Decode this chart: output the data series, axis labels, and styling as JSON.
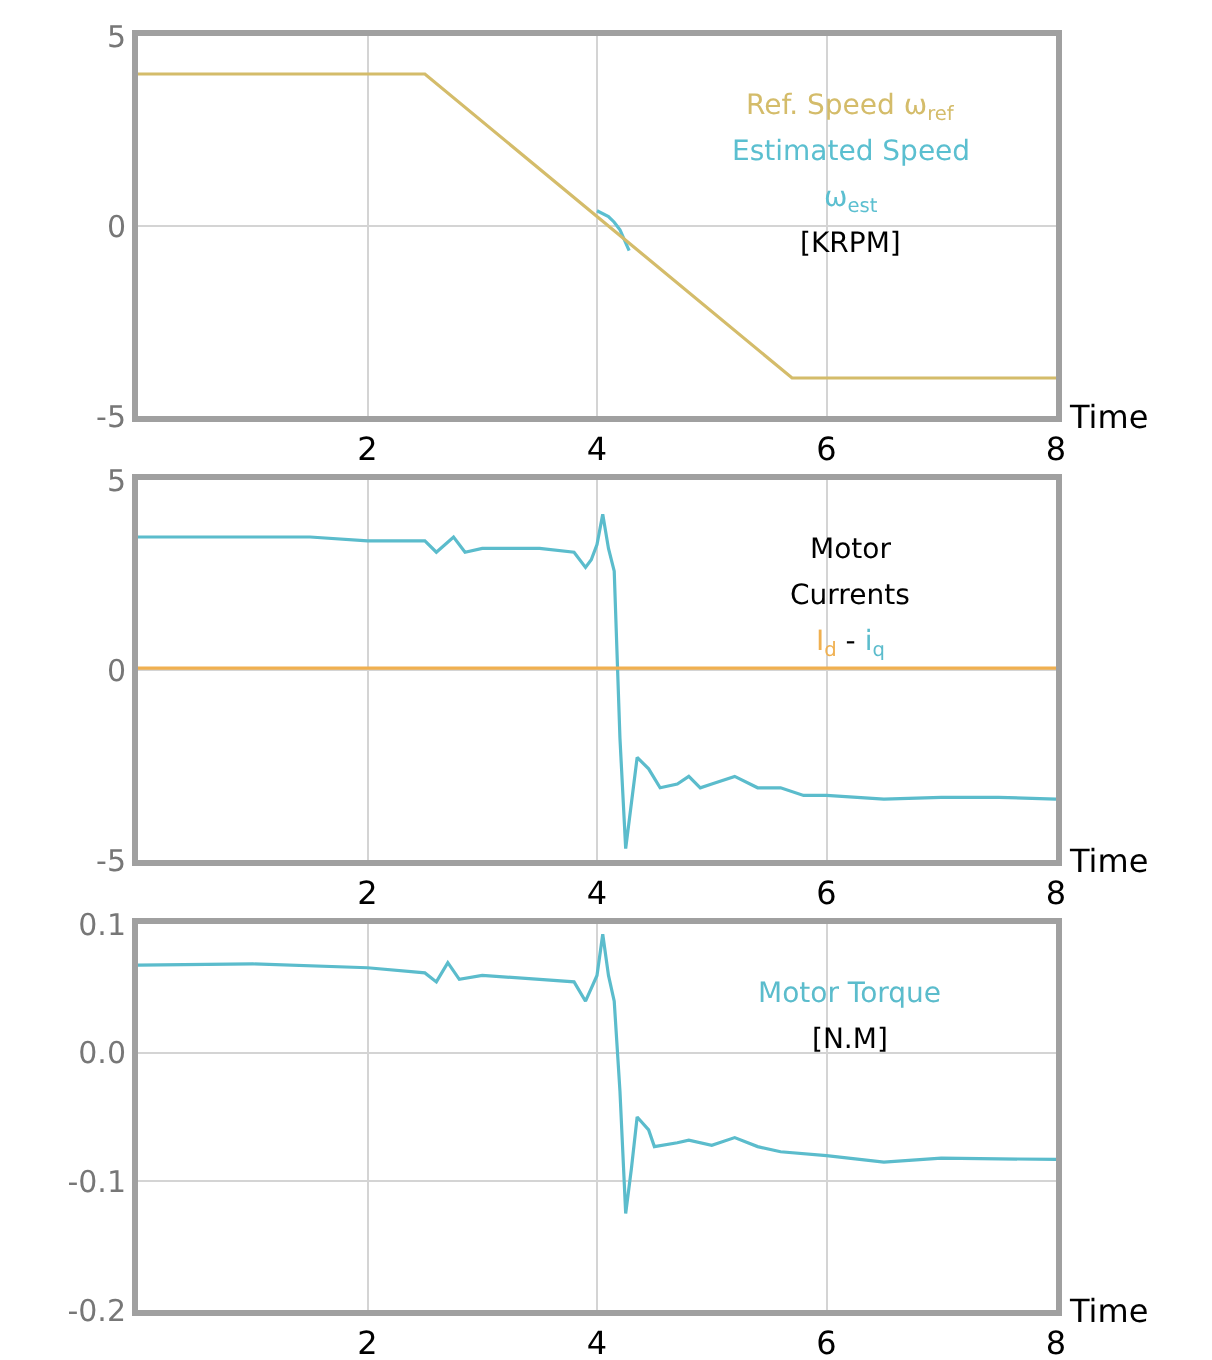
{
  "chart_data": [
    {
      "type": "line",
      "ylabel": "[KRPM]",
      "xlabel": "Time",
      "xlim": [
        0,
        8
      ],
      "xticks": [
        2,
        4,
        6,
        8
      ],
      "ylim": [
        -5,
        5
      ],
      "yticks": [
        -5,
        0,
        5
      ],
      "grid": true,
      "legend": "top right",
      "marker": "none",
      "line_style": "solid",
      "series": [
        {
          "name": "Ref. Speed ω$_{ref}$",
          "color": "#d4bc6a",
          "x": [
            0,
            2.5,
            5.7,
            8
          ],
          "values": [
            4,
            4,
            -4,
            -4
          ]
        },
        {
          "name": "Estimated Speed ω$_{est}$",
          "color": "#5bbfd0",
          "x": [
            4.0,
            4.1,
            4.15,
            4.2,
            4.28
          ],
          "values": [
            0.4,
            0.25,
            0.1,
            -0.1,
            -0.65
          ]
        }
      ]
    },
    {
      "type": "line",
      "title": "Motor Currents",
      "annotations": [
        "-"
      ],
      "xlabel": "Time",
      "xlim": [
        0,
        8
      ],
      "xticks": [
        2,
        4,
        6,
        8
      ],
      "ylim": [
        -5,
        5
      ],
      "yticks": [
        -5,
        0,
        5
      ],
      "grid": true,
      "legend": "top right",
      "marker": "none",
      "line_style": "solid",
      "series": [
        {
          "name": "I$_{d}$",
          "color": "#f0b050",
          "x": [
            0,
            8
          ],
          "values": [
            0.05,
            0.05
          ]
        },
        {
          "name": "i$_{q}$",
          "color": "#5bbccc",
          "x": [
            0,
            1,
            1.5,
            2,
            2.5,
            2.6,
            2.75,
            2.85,
            3,
            3.5,
            3.8,
            3.9,
            3.95,
            4.0,
            4.05,
            4.1,
            4.15,
            4.2,
            4.25,
            4.3,
            4.35,
            4.45,
            4.55,
            4.7,
            4.8,
            4.9,
            5.0,
            5.2,
            5.4,
            5.6,
            5.8,
            6.0,
            6.5,
            7.0,
            7.5,
            8
          ],
          "values": [
            3.5,
            3.5,
            3.5,
            3.4,
            3.4,
            3.1,
            3.5,
            3.1,
            3.2,
            3.2,
            3.1,
            2.7,
            2.9,
            3.3,
            4.1,
            3.2,
            2.6,
            -1.8,
            -4.7,
            -3.5,
            -2.3,
            -2.6,
            -3.1,
            -3.0,
            -2.8,
            -3.1,
            -3.0,
            -2.8,
            -3.1,
            -3.1,
            -3.3,
            -3.3,
            -3.4,
            -3.35,
            -3.35,
            -3.4
          ]
        }
      ]
    },
    {
      "type": "line",
      "ylabel": "[N.M]",
      "xlabel": "Time",
      "xlim": [
        0,
        8
      ],
      "xticks": [
        2,
        4,
        6,
        8
      ],
      "ylim": [
        -0.2,
        0.1
      ],
      "yticks": [
        -0.2,
        -0.1,
        {
          "value": 0,
          "label": "0.0"
        },
        0.1
      ],
      "grid": true,
      "legend": "top right",
      "marker": "none",
      "line_style": "solid",
      "series": [
        {
          "name": "Motor Torque",
          "color": "#5bbccc",
          "x": [
            0,
            1,
            2,
            2.5,
            2.6,
            2.7,
            2.8,
            3,
            3.5,
            3.8,
            3.9,
            3.95,
            4.0,
            4.05,
            4.1,
            4.15,
            4.2,
            4.25,
            4.3,
            4.35,
            4.45,
            4.5,
            4.7,
            4.8,
            5.0,
            5.2,
            5.4,
            5.6,
            6.0,
            6.5,
            7.0,
            8
          ],
          "values": [
            0.068,
            0.069,
            0.066,
            0.062,
            0.055,
            0.07,
            0.057,
            0.06,
            0.057,
            0.055,
            0.04,
            0.05,
            0.06,
            0.092,
            0.06,
            0.04,
            -0.03,
            -0.125,
            -0.09,
            -0.05,
            -0.06,
            -0.073,
            -0.07,
            -0.068,
            -0.072,
            -0.066,
            -0.073,
            -0.077,
            -0.08,
            -0.085,
            -0.082,
            -0.083
          ]
        }
      ]
    }
  ]
}
